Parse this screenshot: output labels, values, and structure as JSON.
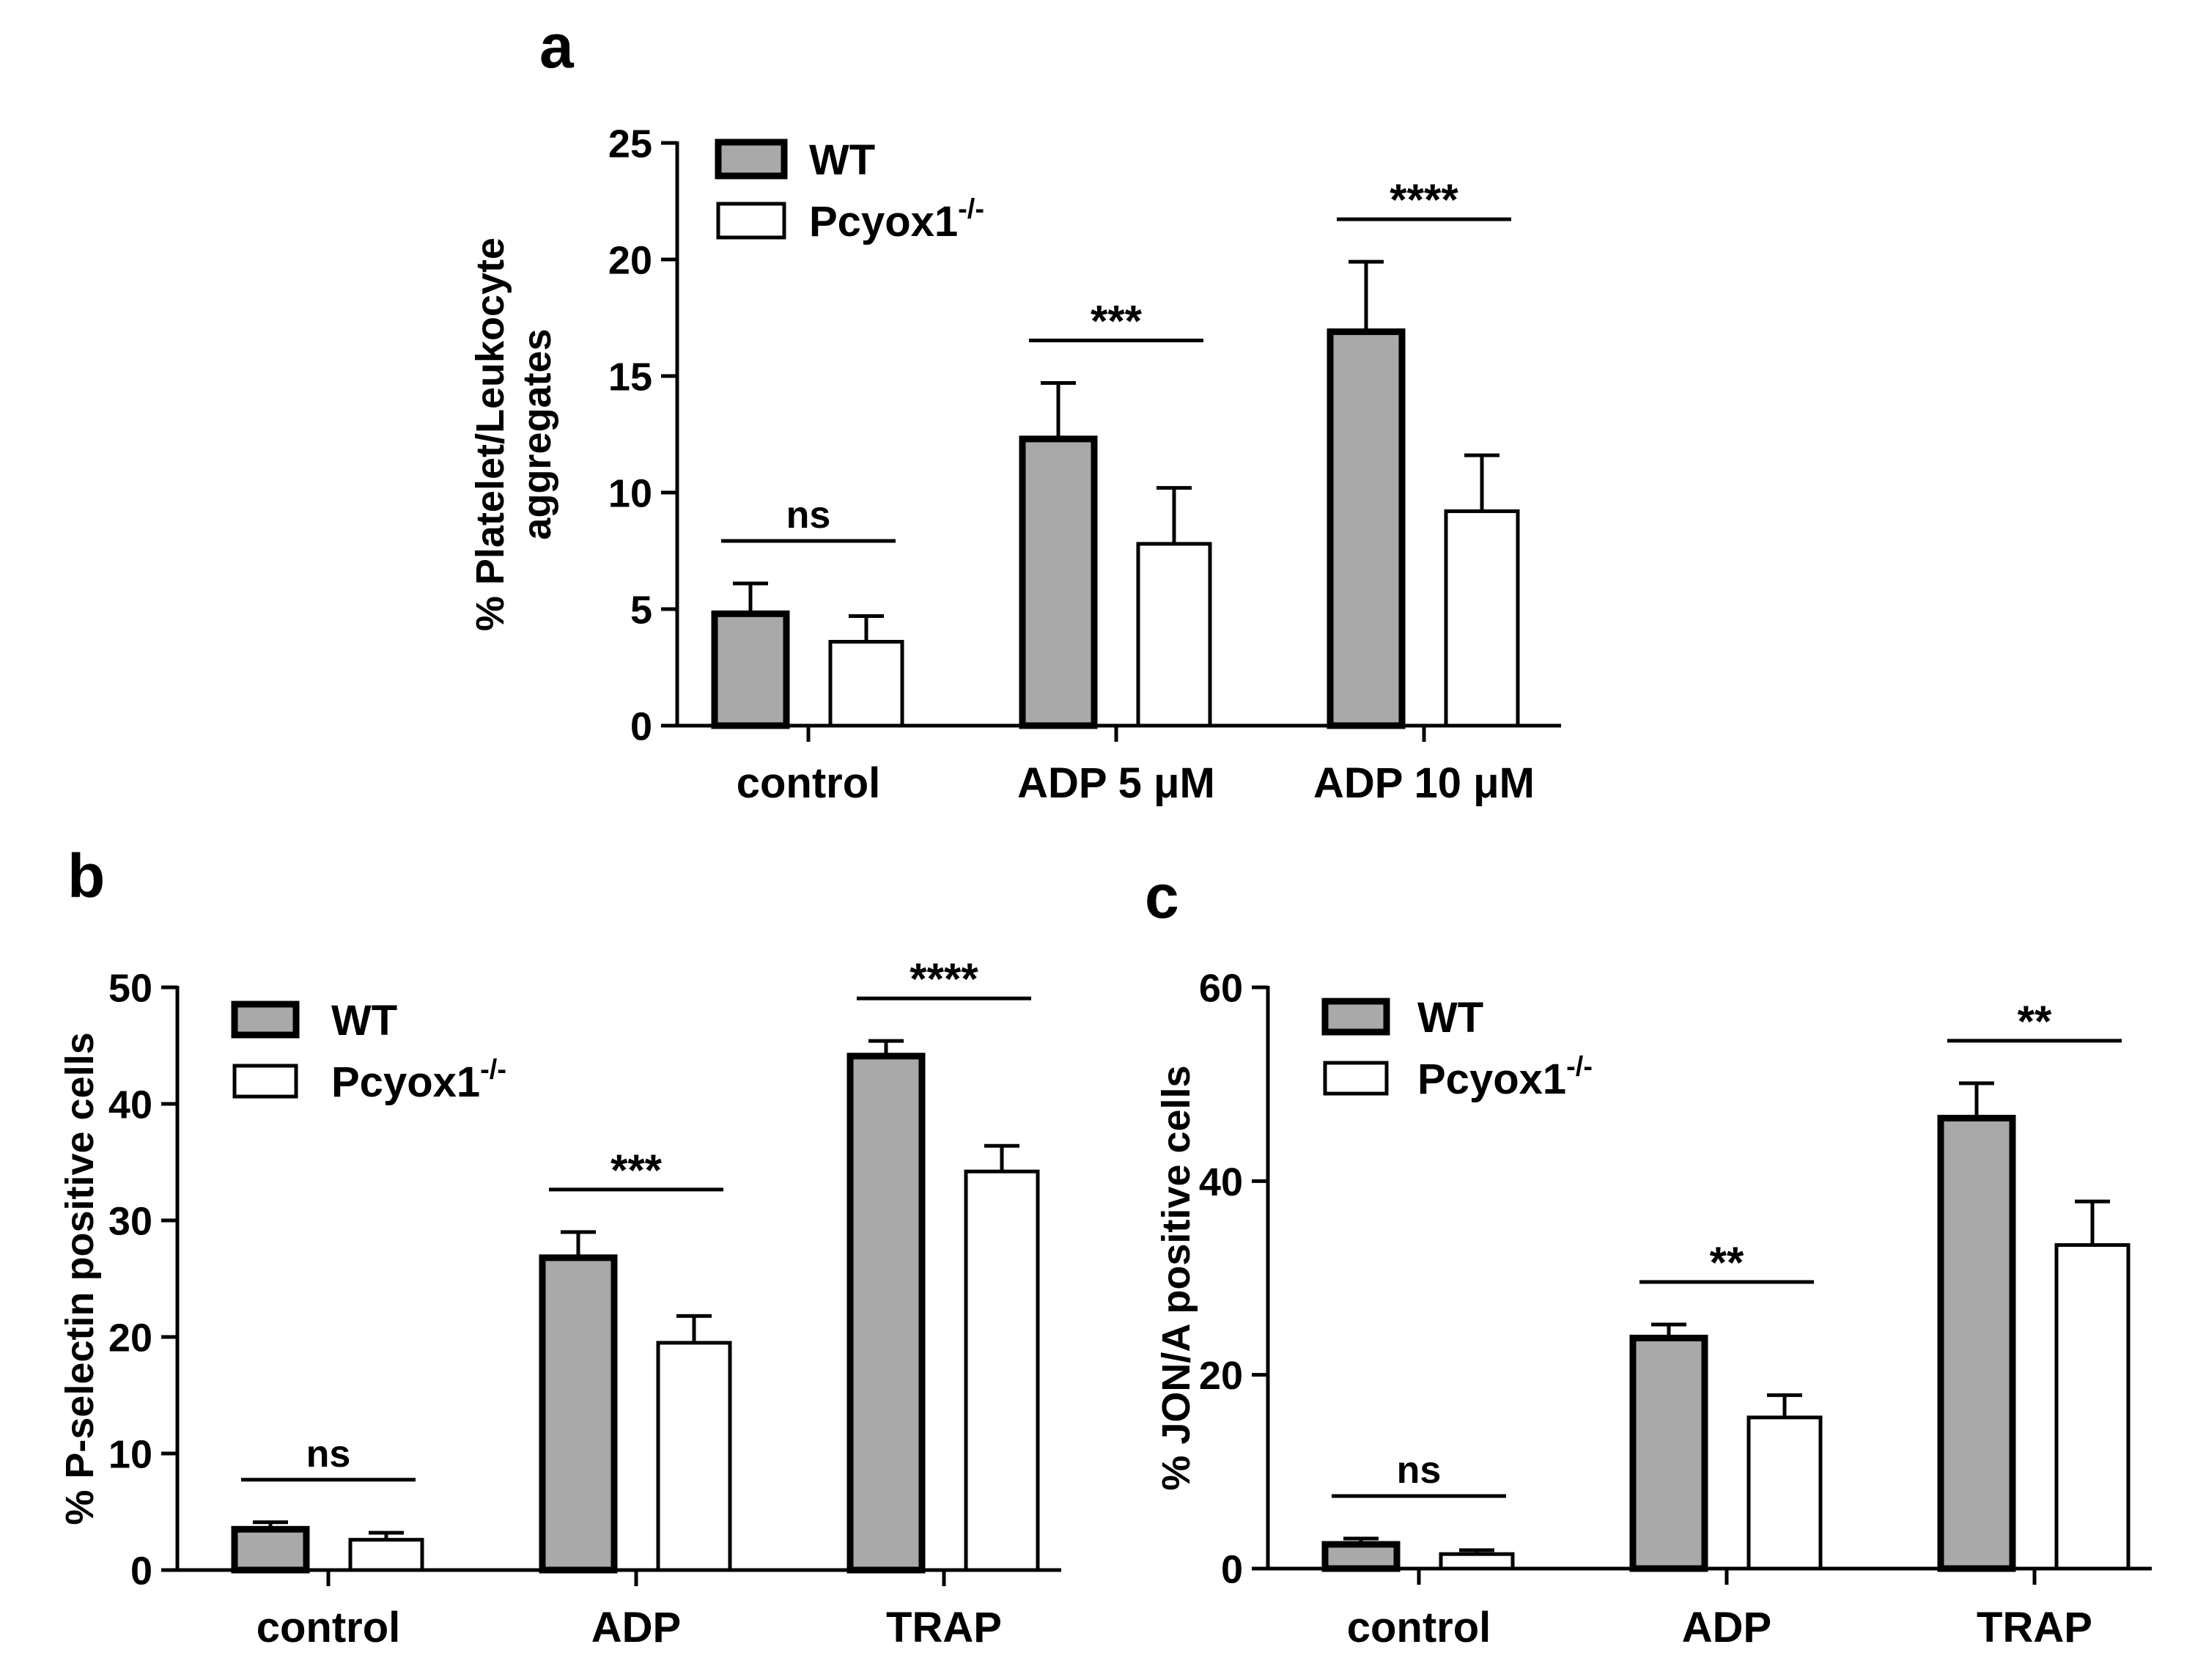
{
  "colors": {
    "wt": "#a9a9a9",
    "ko": "#ffffff",
    "stroke": "#000000"
  },
  "chart_data": [
    {
      "panel": "a",
      "type": "bar",
      "ylabel_lines": [
        "% Platelet/Leukocyte",
        "aggregates"
      ],
      "categories": [
        "control",
        "ADP 5 μM",
        "ADP 10 μM"
      ],
      "ylim": [
        0,
        25
      ],
      "yticks": [
        0,
        5,
        10,
        15,
        20,
        25
      ],
      "series": [
        {
          "name": "WT",
          "values": [
            4.8,
            12.3,
            16.9
          ],
          "errors": [
            1.3,
            2.4,
            3.0
          ]
        },
        {
          "name": "Pcyox1",
          "sup": "-/-",
          "values": [
            3.6,
            7.8,
            9.2
          ],
          "errors": [
            1.1,
            2.4,
            2.4
          ]
        }
      ],
      "significance": [
        "ns",
        "***",
        "****"
      ],
      "legend": "top-left"
    },
    {
      "panel": "b",
      "type": "bar",
      "ylabel_lines": [
        "% P-selectin positive cells"
      ],
      "categories": [
        "control",
        "ADP",
        "TRAP"
      ],
      "ylim": [
        0,
        50
      ],
      "yticks": [
        0,
        10,
        20,
        30,
        40,
        50
      ],
      "series": [
        {
          "name": "WT",
          "values": [
            3.5,
            26.8,
            44.1
          ],
          "errors": [
            0.6,
            2.2,
            1.3
          ]
        },
        {
          "name": "Pcyox1",
          "sup": "-/-",
          "values": [
            2.6,
            19.5,
            34.2
          ],
          "errors": [
            0.6,
            2.3,
            2.2
          ]
        }
      ],
      "significance": [
        "ns",
        "***",
        "****"
      ],
      "legend": "top-left"
    },
    {
      "panel": "c",
      "type": "bar",
      "ylabel_lines": [
        "% JON/A positive cells"
      ],
      "categories": [
        "control",
        "ADP",
        "TRAP"
      ],
      "ylim": [
        0,
        60
      ],
      "yticks": [
        0,
        20,
        40,
        60
      ],
      "series": [
        {
          "name": "WT",
          "values": [
            2.5,
            23.8,
            46.5
          ],
          "errors": [
            0.6,
            1.4,
            3.6
          ]
        },
        {
          "name": "Pcyox1",
          "sup": "-/-",
          "values": [
            1.5,
            15.6,
            33.4
          ],
          "errors": [
            0.4,
            2.3,
            4.5
          ]
        }
      ],
      "significance": [
        "ns",
        "**",
        "**"
      ],
      "legend": "top-left"
    }
  ]
}
